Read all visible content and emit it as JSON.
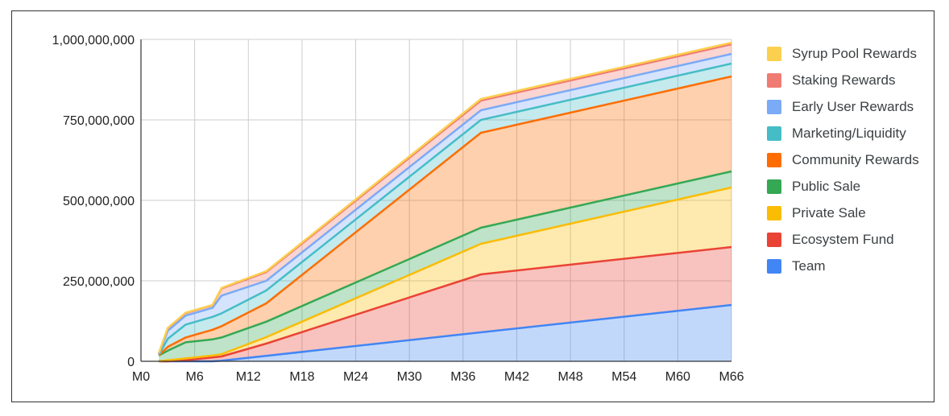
{
  "chart_data": {
    "type": "area",
    "stacked": true,
    "title": "",
    "xlabel": "",
    "ylabel": "",
    "x": [
      2,
      3,
      5,
      8,
      9,
      14,
      38,
      66
    ],
    "xlim": [
      0,
      66
    ],
    "ylim": [
      0,
      1000000000
    ],
    "x_ticks": [
      "M0",
      "M6",
      "M12",
      "M18",
      "M24",
      "M30",
      "M36",
      "M42",
      "M48",
      "M54",
      "M60",
      "M66"
    ],
    "y_ticks": [
      "0",
      "250,000,000",
      "500,000,000",
      "750,000,000",
      "1,000,000,000"
    ],
    "grid": true,
    "legend_position": "right",
    "series": [
      {
        "name": "Team",
        "color": "#4285f4",
        "values": [
          0,
          0,
          0,
          0,
          2000000,
          17000000,
          90000000,
          175000000
        ]
      },
      {
        "name": "Ecosystem Fund",
        "color": "#ea4335",
        "values": [
          0,
          0,
          3000000,
          12000000,
          13000000,
          38000000,
          180000000,
          180000000
        ]
      },
      {
        "name": "Private Sale",
        "color": "#fbbc04",
        "values": [
          0,
          3000000,
          6000000,
          6000000,
          7000000,
          20000000,
          95000000,
          185000000
        ]
      },
      {
        "name": "Public Sale",
        "color": "#34a853",
        "values": [
          18000000,
          30000000,
          50000000,
          50000000,
          52000000,
          48000000,
          50000000,
          50000000
        ]
      },
      {
        "name": "Community Rewards",
        "color": "#ff6d01",
        "values": [
          0,
          12000000,
          15000000,
          30000000,
          35000000,
          57000000,
          295000000,
          295000000
        ]
      },
      {
        "name": "Marketing/Liquidity",
        "color": "#46bdc6",
        "values": [
          2000000,
          25000000,
          40000000,
          40000000,
          40000000,
          40000000,
          40000000,
          40000000
        ]
      },
      {
        "name": "Early User Rewards",
        "color": "#7baaf7",
        "values": [
          3000000,
          25000000,
          28000000,
          28000000,
          55000000,
          30000000,
          30000000,
          30000000
        ]
      },
      {
        "name": "Staking Rewards",
        "color": "#f07b72",
        "values": [
          2000000,
          8000000,
          8000000,
          8000000,
          22000000,
          27000000,
          30000000,
          30000000
        ]
      },
      {
        "name": "Syrup Pool Rewards",
        "color": "#fcd04f",
        "values": [
          1000000,
          1000000,
          1000000,
          1000000,
          2000000,
          3000000,
          5000000,
          5000000
        ]
      }
    ]
  }
}
